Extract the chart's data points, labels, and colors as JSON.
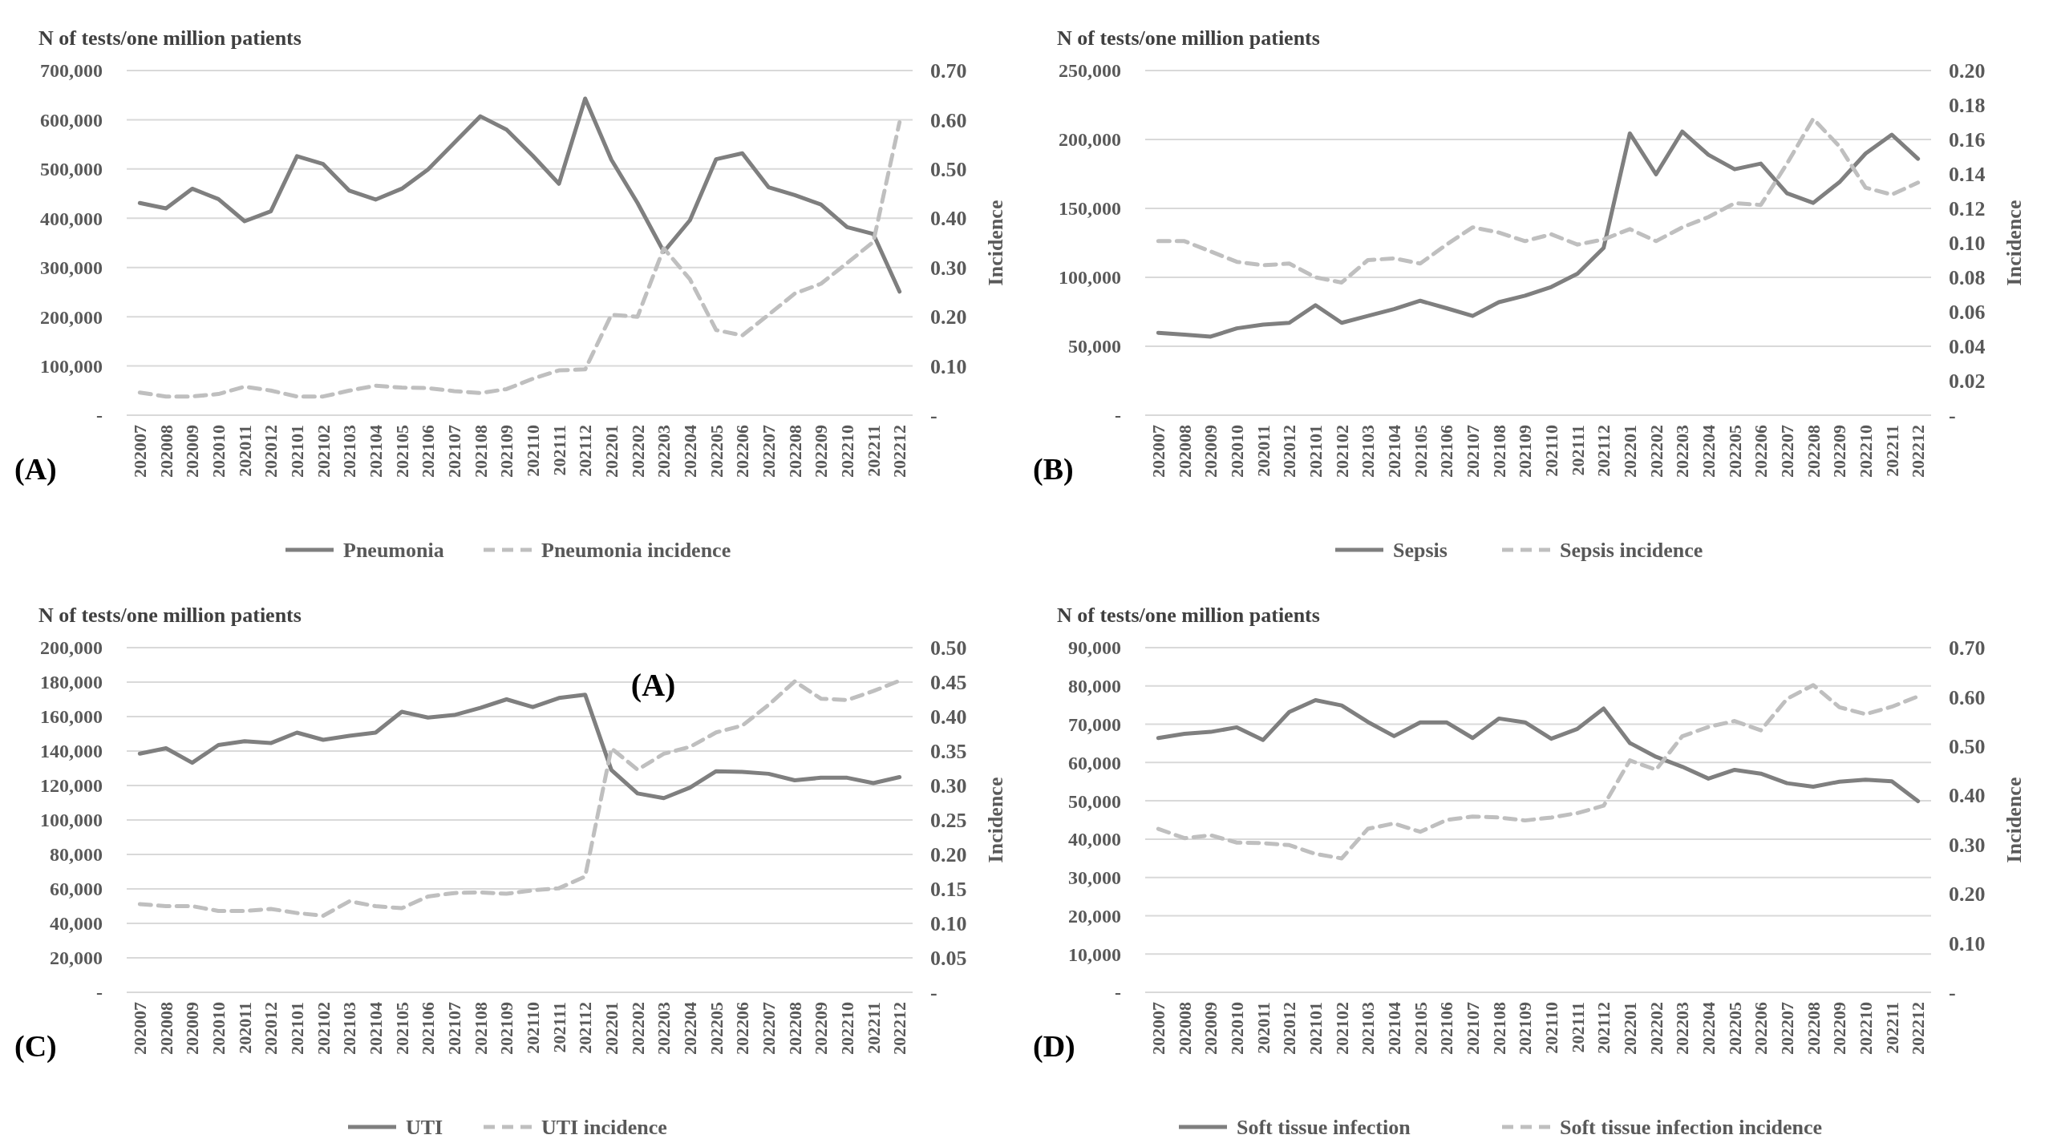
{
  "chart_data": [
    {
      "type": "line",
      "ylabel": "N of tests/one million patients",
      "y2label": "Incidence",
      "annotations": [
        "(A)"
      ],
      "categories": [
        "202007",
        "202008",
        "202009",
        "202010",
        "202011",
        "202012",
        "202101",
        "202102",
        "202103",
        "202104",
        "202105",
        "202106",
        "202107",
        "202108",
        "202109",
        "202110",
        "202111",
        "202112",
        "202201",
        "202202",
        "202203",
        "202204",
        "202205",
        "202206",
        "202207",
        "202208",
        "202209",
        "202210",
        "202211",
        "202212"
      ],
      "series": [
        {
          "name": "Pneumonia",
          "color": "#7f7f7f",
          "line_style": "solid",
          "values": [
            431000,
            420000,
            460000,
            439000,
            394000,
            414000,
            526000,
            510000,
            456000,
            438000,
            460000,
            499000,
            553000,
            607000,
            580000,
            527000,
            470000,
            643000,
            519000,
            431000,
            332000,
            396000,
            520000,
            532000,
            463000,
            447000,
            428000,
            382000,
            368000,
            251000
          ]
        },
        {
          "name": "Pneumonia incidence",
          "color": "#bfbfbf",
          "line_style": "dashed",
          "axis": "y2",
          "values": [
            0.046,
            0.038,
            0.038,
            0.043,
            0.058,
            0.05,
            0.038,
            0.038,
            0.05,
            0.06,
            0.056,
            0.055,
            0.049,
            0.045,
            0.053,
            0.074,
            0.091,
            0.093,
            0.204,
            0.2,
            0.339,
            0.276,
            0.173,
            0.162,
            0.204,
            0.247,
            0.267,
            0.309,
            0.352,
            0.595
          ]
        }
      ],
      "ylim": [
        0,
        700000
      ],
      "yticks": [
        {
          "value": 0,
          "label": "-"
        },
        {
          "value": 100000,
          "label": "100,000"
        },
        {
          "value": 200000,
          "label": "200,000"
        },
        {
          "value": 300000,
          "label": "300,000"
        },
        {
          "value": 400000,
          "label": "400,000"
        },
        {
          "value": 500000,
          "label": "500,000"
        },
        {
          "value": 600000,
          "label": "600,000"
        },
        {
          "value": 700000,
          "label": "700,000"
        }
      ],
      "y2lim": [
        0,
        0.7
      ],
      "y2ticks": [
        {
          "value": 0,
          "label": "-"
        },
        {
          "value": 0.1,
          "label": "0.10"
        },
        {
          "value": 0.2,
          "label": "0.20"
        },
        {
          "value": 0.3,
          "label": "0.30"
        },
        {
          "value": 0.4,
          "label": "0.40"
        },
        {
          "value": 0.5,
          "label": "0.50"
        },
        {
          "value": 0.6,
          "label": "0.60"
        },
        {
          "value": 0.7,
          "label": "0.70"
        }
      ],
      "grid": "y",
      "legend": "bottom"
    },
    {
      "type": "line",
      "ylabel": "N of tests/one million patients",
      "y2label": "Incidence",
      "annotations": [
        "(B)"
      ],
      "categories": [
        "202007",
        "202008",
        "202009",
        "202010",
        "202011",
        "202012",
        "202101",
        "202102",
        "202103",
        "202104",
        "202105",
        "202106",
        "202107",
        "202108",
        "202109",
        "202110",
        "202111",
        "202112",
        "202201",
        "202202",
        "202203",
        "202204",
        "202205",
        "202206",
        "202207",
        "202208",
        "202209",
        "202210",
        "202211",
        "202212"
      ],
      "series": [
        {
          "name": "Sepsis",
          "color": "#7f7f7f",
          "line_style": "solid",
          "values": [
            59800,
            58400,
            57000,
            63000,
            65700,
            67000,
            79800,
            67000,
            72000,
            77000,
            83000,
            77600,
            72000,
            82000,
            86700,
            93000,
            102600,
            121400,
            204400,
            174700,
            205700,
            188900,
            178400,
            182500,
            161000,
            154000,
            169000,
            189800,
            203500,
            186000
          ]
        },
        {
          "name": "Sepsis incidence",
          "color": "#bfbfbf",
          "line_style": "dashed",
          "axis": "y2",
          "values": [
            0.101,
            0.101,
            0.095,
            0.089,
            0.087,
            0.088,
            0.08,
            0.077,
            0.09,
            0.091,
            0.088,
            0.099,
            0.109,
            0.106,
            0.101,
            0.105,
            0.099,
            0.102,
            0.108,
            0.101,
            0.109,
            0.115,
            0.123,
            0.122,
            0.146,
            0.172,
            0.156,
            0.132,
            0.128,
            0.135
          ]
        }
      ],
      "ylim": [
        0,
        250000
      ],
      "yticks": [
        {
          "value": 0,
          "label": "-"
        },
        {
          "value": 50000,
          "label": "50,000"
        },
        {
          "value": 100000,
          "label": "100,000"
        },
        {
          "value": 150000,
          "label": "150,000"
        },
        {
          "value": 200000,
          "label": "200,000"
        },
        {
          "value": 250000,
          "label": "250,000"
        }
      ],
      "y2lim": [
        0,
        0.2
      ],
      "y2ticks": [
        {
          "value": 0,
          "label": "-"
        },
        {
          "value": 0.02,
          "label": "0.02"
        },
        {
          "value": 0.04,
          "label": "0.04"
        },
        {
          "value": 0.06,
          "label": "0.06"
        },
        {
          "value": 0.08,
          "label": "0.08"
        },
        {
          "value": 0.1,
          "label": "0.10"
        },
        {
          "value": 0.12,
          "label": "0.12"
        },
        {
          "value": 0.14,
          "label": "0.14"
        },
        {
          "value": 0.16,
          "label": "0.16"
        },
        {
          "value": 0.18,
          "label": "0.18"
        },
        {
          "value": 0.2,
          "label": "0.20"
        }
      ],
      "grid": "y",
      "legend": "bottom"
    },
    {
      "type": "line",
      "ylabel": "N of tests/one million patients",
      "y2label": "Incidence",
      "annotations": [
        "(C)",
        "(A)"
      ],
      "categories": [
        "202007",
        "202008",
        "202009",
        "202010",
        "202011",
        "202012",
        "202101",
        "202102",
        "202103",
        "202104",
        "202105",
        "202106",
        "202107",
        "202108",
        "202109",
        "202110",
        "202111",
        "202112",
        "202201",
        "202202",
        "202203",
        "202204",
        "202205",
        "202206",
        "202207",
        "202208",
        "202209",
        "202210",
        "202211",
        "202212"
      ],
      "series": [
        {
          "name": "UTI",
          "color": "#7f7f7f",
          "line_style": "solid",
          "values": [
            138500,
            141600,
            133200,
            143500,
            145700,
            144600,
            150700,
            146500,
            148800,
            150700,
            162800,
            159400,
            160900,
            165100,
            170000,
            165500,
            170800,
            172700,
            129000,
            115400,
            112700,
            118800,
            128300,
            127900,
            126800,
            123000,
            124500,
            124500,
            121400,
            124900
          ]
        },
        {
          "name": "UTI incidence",
          "color": "#bfbfbf",
          "line_style": "dashed",
          "axis": "y2",
          "values": [
            0.128,
            0.125,
            0.125,
            0.118,
            0.118,
            0.121,
            0.115,
            0.111,
            0.132,
            0.125,
            0.122,
            0.139,
            0.144,
            0.145,
            0.143,
            0.148,
            0.151,
            0.168,
            0.354,
            0.323,
            0.346,
            0.356,
            0.377,
            0.387,
            0.417,
            0.451,
            0.426,
            0.424,
            0.437,
            0.452
          ]
        }
      ],
      "ylim": [
        0,
        200000
      ],
      "yticks": [
        {
          "value": 0,
          "label": "-"
        },
        {
          "value": 20000,
          "label": "20,000"
        },
        {
          "value": 40000,
          "label": "40,000"
        },
        {
          "value": 60000,
          "label": "60,000"
        },
        {
          "value": 80000,
          "label": "80,000"
        },
        {
          "value": 100000,
          "label": "100,000"
        },
        {
          "value": 120000,
          "label": "120,000"
        },
        {
          "value": 140000,
          "label": "140,000"
        },
        {
          "value": 160000,
          "label": "160,000"
        },
        {
          "value": 180000,
          "label": "180,000"
        },
        {
          "value": 200000,
          "label": "200,000"
        }
      ],
      "y2lim": [
        0,
        0.5
      ],
      "y2ticks": [
        {
          "value": 0,
          "label": "-"
        },
        {
          "value": 0.05,
          "label": "0.05"
        },
        {
          "value": 0.1,
          "label": "0.10"
        },
        {
          "value": 0.15,
          "label": "0.15"
        },
        {
          "value": 0.2,
          "label": "0.20"
        },
        {
          "value": 0.25,
          "label": "0.25"
        },
        {
          "value": 0.3,
          "label": "0.30"
        },
        {
          "value": 0.35,
          "label": "0.35"
        },
        {
          "value": 0.4,
          "label": "0.40"
        },
        {
          "value": 0.45,
          "label": "0.45"
        },
        {
          "value": 0.5,
          "label": "0.50"
        }
      ],
      "grid": "y",
      "legend": "bottom"
    },
    {
      "type": "line",
      "ylabel": "N of tests/one million patients",
      "y2label": "Incidence",
      "annotations": [
        "(D)"
      ],
      "categories": [
        "202007",
        "202008",
        "202009",
        "202010",
        "202011",
        "202012",
        "202101",
        "202102",
        "202103",
        "202104",
        "202105",
        "202106",
        "202107",
        "202108",
        "202109",
        "202110",
        "202111",
        "202112",
        "202201",
        "202202",
        "202203",
        "202204",
        "202205",
        "202206",
        "202207",
        "202208",
        "202209",
        "202210",
        "202211",
        "202212"
      ],
      "series": [
        {
          "name": "Soft tissue infection",
          "color": "#7f7f7f",
          "line_style": "solid",
          "values": [
            66400,
            67500,
            68000,
            69200,
            65900,
            73200,
            76300,
            74900,
            70600,
            66900,
            70500,
            70500,
            66400,
            71500,
            70500,
            66200,
            68800,
            74100,
            65100,
            61500,
            58900,
            55800,
            58100,
            57100,
            54600,
            53700,
            55000,
            55500,
            55100,
            49900
          ]
        },
        {
          "name": "Soft tissue infection incidence",
          "color": "#bfbfbf",
          "line_style": "dashed",
          "axis": "y2",
          "values": [
            0.332,
            0.313,
            0.319,
            0.304,
            0.303,
            0.299,
            0.281,
            0.272,
            0.332,
            0.343,
            0.326,
            0.35,
            0.357,
            0.355,
            0.349,
            0.355,
            0.364,
            0.379,
            0.471,
            0.452,
            0.52,
            0.539,
            0.551,
            0.532,
            0.596,
            0.624,
            0.579,
            0.565,
            0.58,
            0.601
          ]
        }
      ],
      "ylim": [
        0,
        90000
      ],
      "yticks": [
        {
          "value": 0,
          "label": "-"
        },
        {
          "value": 10000,
          "label": "10,000"
        },
        {
          "value": 20000,
          "label": "20,000"
        },
        {
          "value": 30000,
          "label": "30,000"
        },
        {
          "value": 40000,
          "label": "40,000"
        },
        {
          "value": 50000,
          "label": "50,000"
        },
        {
          "value": 60000,
          "label": "60,000"
        },
        {
          "value": 70000,
          "label": "70,000"
        },
        {
          "value": 80000,
          "label": "80,000"
        },
        {
          "value": 90000,
          "label": "90,000"
        }
      ],
      "y2lim": [
        0,
        0.7
      ],
      "y2ticks": [
        {
          "value": 0,
          "label": "-"
        },
        {
          "value": 0.1,
          "label": "0.10"
        },
        {
          "value": 0.2,
          "label": "0.20"
        },
        {
          "value": 0.3,
          "label": "0.30"
        },
        {
          "value": 0.4,
          "label": "0.40"
        },
        {
          "value": 0.5,
          "label": "0.50"
        },
        {
          "value": 0.6,
          "label": "0.60"
        },
        {
          "value": 0.7,
          "label": "0.70"
        }
      ],
      "grid": "y",
      "legend": "bottom"
    }
  ]
}
